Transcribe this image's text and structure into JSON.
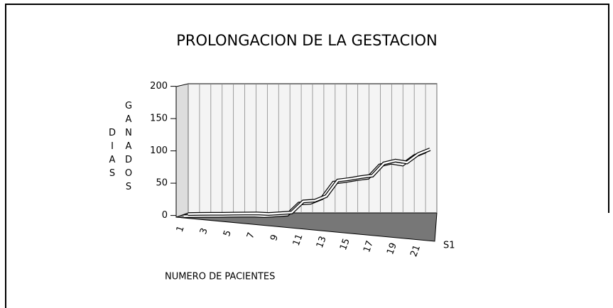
{
  "chart_data": {
    "type": "line",
    "title": "PROLONGACION DE LA GESTACION",
    "x_label": "NUMERO DE PACIENTES",
    "y_label_1": "DIAS",
    "y_label_2": "GANADOS",
    "categories": [
      "1",
      null,
      "3",
      null,
      "5",
      null,
      "7",
      null,
      "9",
      null,
      "11",
      null,
      "13",
      null,
      "15",
      null,
      "17",
      null,
      "19",
      null,
      "21",
      null
    ],
    "series": [
      {
        "name": "S1",
        "color": "#ffffff",
        "values": [
          2,
          3,
          4,
          5,
          6,
          7,
          8,
          8,
          10,
          12,
          30,
          32,
          40,
          65,
          68,
          72,
          75,
          95,
          100,
          98,
          112,
          120
        ]
      }
    ],
    "ylim": [
      0,
      200
    ],
    "yticks": [
      0,
      50,
      100,
      150,
      200
    ],
    "grid": true
  }
}
